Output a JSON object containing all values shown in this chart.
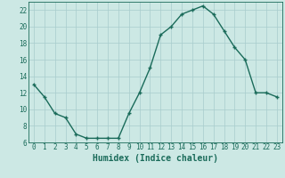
{
  "x": [
    0,
    1,
    2,
    3,
    4,
    5,
    6,
    7,
    8,
    9,
    10,
    11,
    12,
    13,
    14,
    15,
    16,
    17,
    18,
    19,
    20,
    21,
    22,
    23
  ],
  "y": [
    13,
    11.5,
    9.5,
    9,
    7,
    6.5,
    6.5,
    6.5,
    6.5,
    9.5,
    12,
    15,
    19,
    20,
    21.5,
    22,
    22.5,
    21.5,
    19.5,
    17.5,
    16,
    12,
    12,
    11.5
  ],
  "line_color": "#1a6b5a",
  "marker": "+",
  "marker_size": 3,
  "bg_color": "#cce8e4",
  "grid_color": "#a8cccc",
  "xlabel": "Humidex (Indice chaleur)",
  "ylabel": "",
  "ylim": [
    6,
    23
  ],
  "xlim": [
    -0.5,
    23.5
  ],
  "yticks": [
    6,
    8,
    10,
    12,
    14,
    16,
    18,
    20,
    22
  ],
  "xticks": [
    0,
    1,
    2,
    3,
    4,
    5,
    6,
    7,
    8,
    9,
    10,
    11,
    12,
    13,
    14,
    15,
    16,
    17,
    18,
    19,
    20,
    21,
    22,
    23
  ],
  "tick_fontsize": 5.5,
  "xlabel_fontsize": 7,
  "linewidth": 1.0
}
